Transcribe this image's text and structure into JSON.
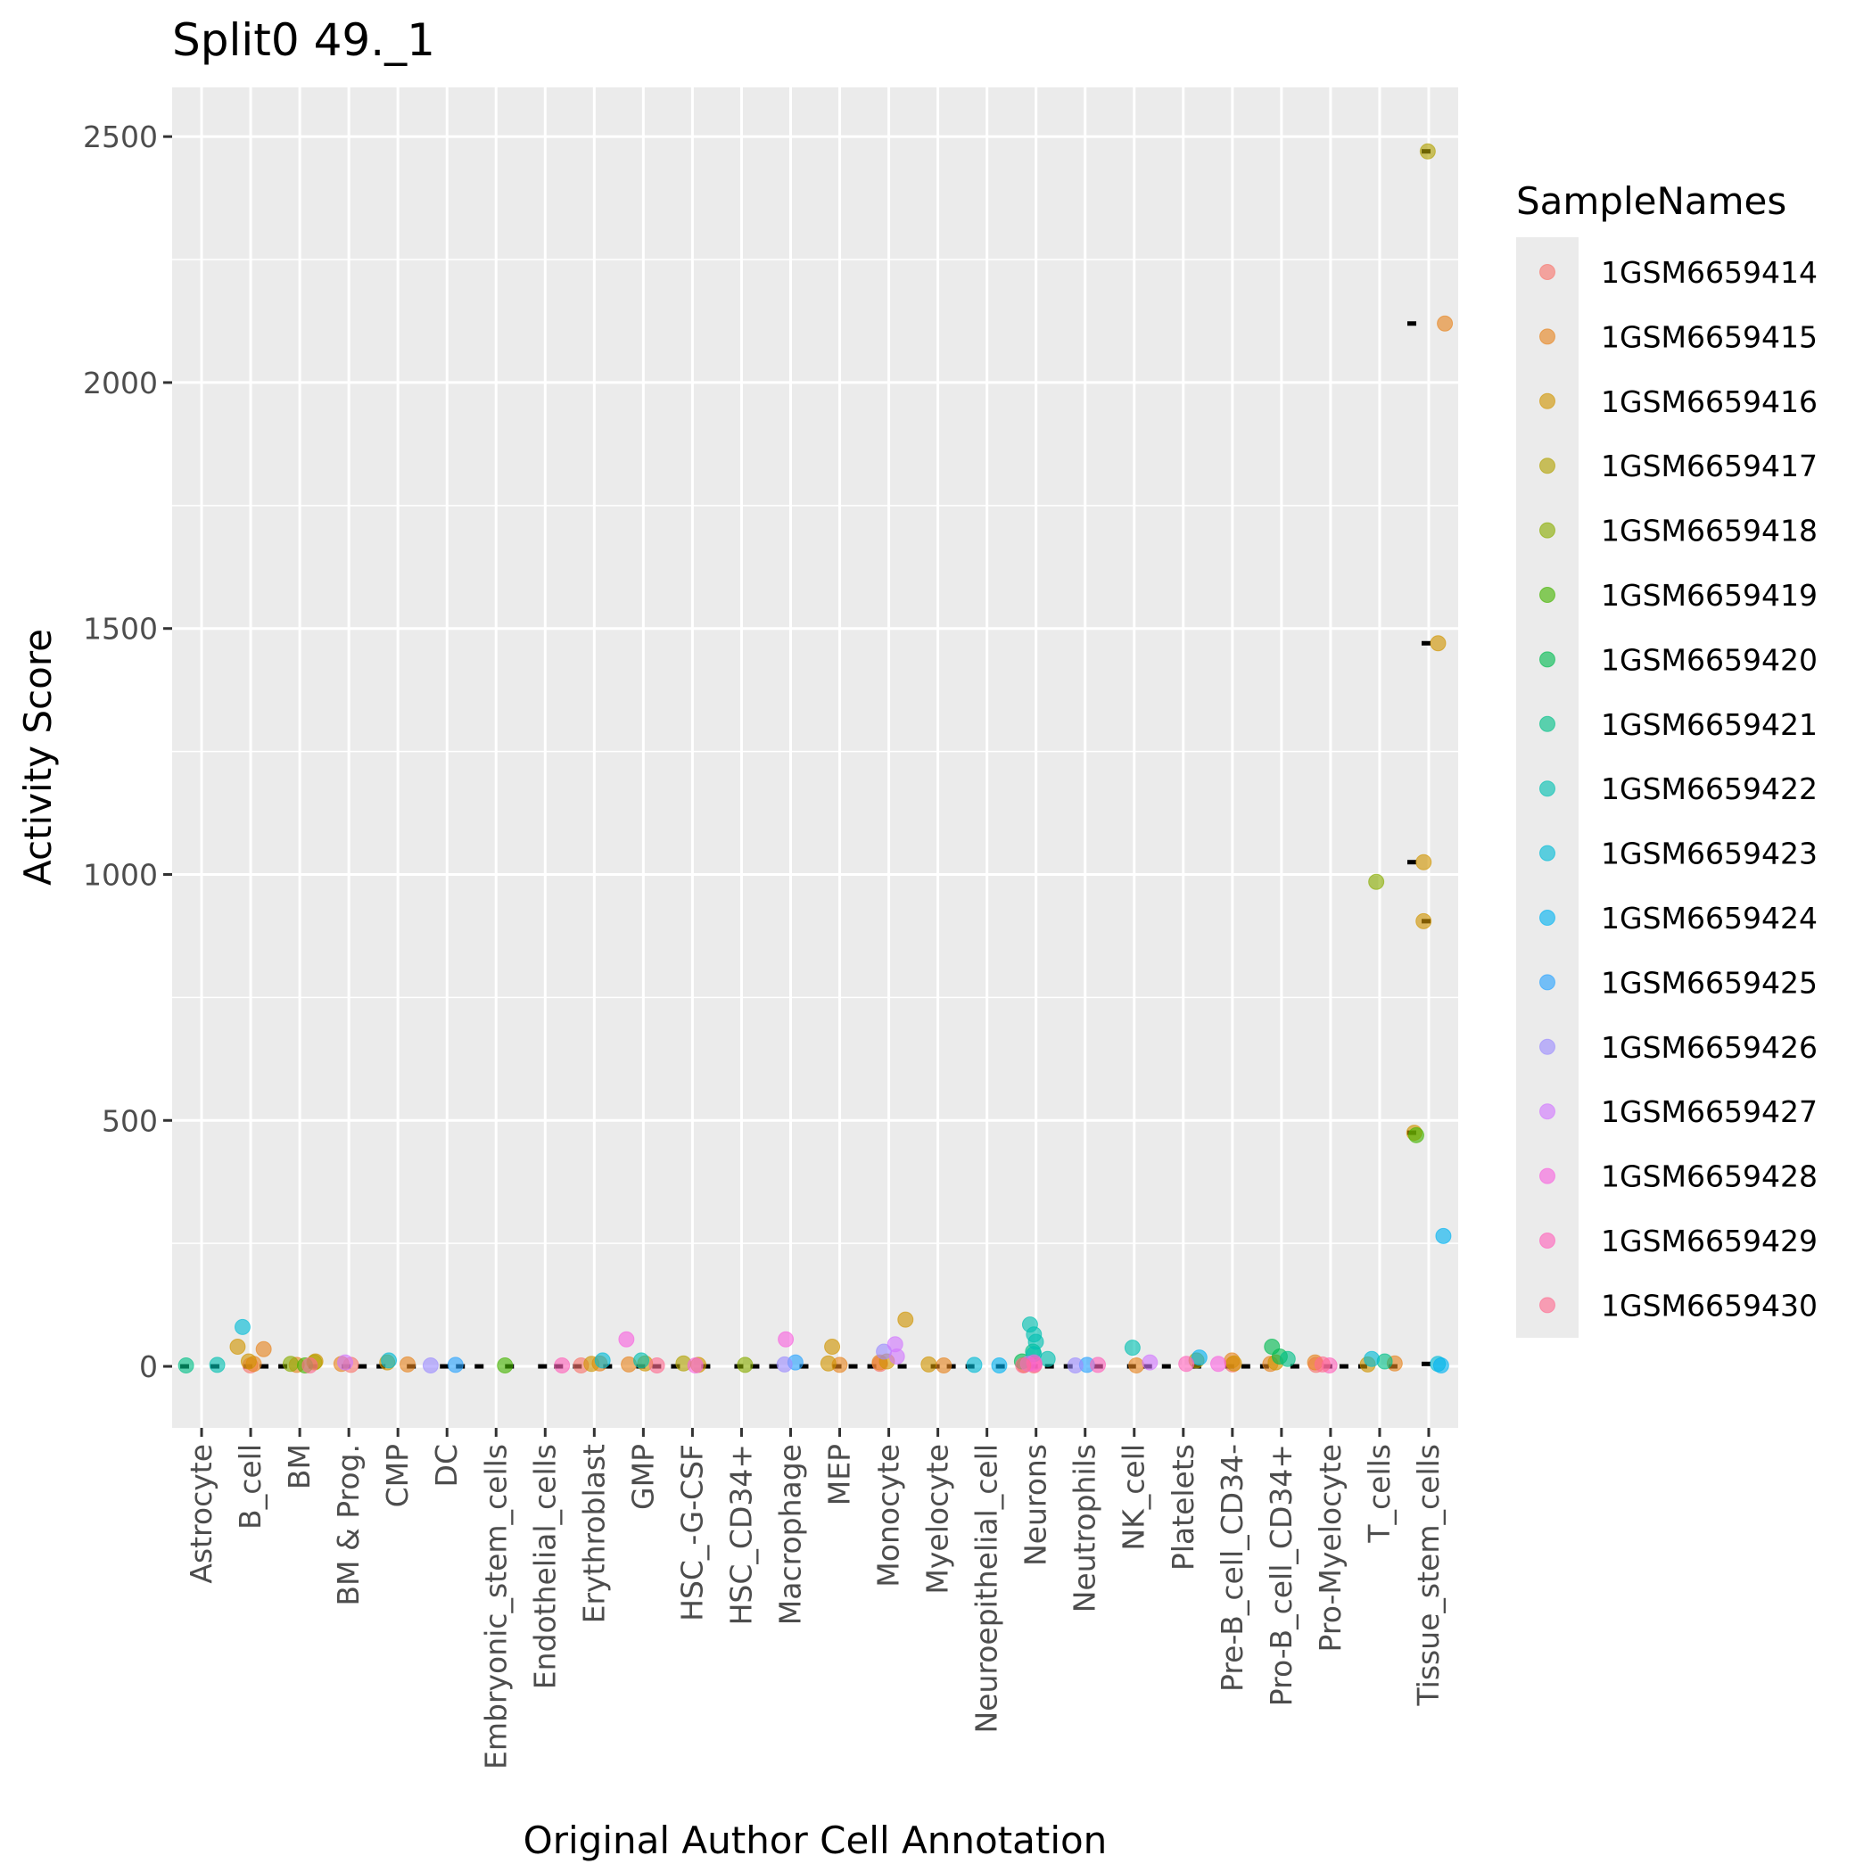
{
  "chart_data": {
    "type": "scatter",
    "title": "Split0 49._1",
    "xlabel": "Original Author Cell Annotation",
    "ylabel": "Activity Score",
    "ylim": [
      -125,
      2600
    ],
    "yticks": [
      0,
      500,
      1000,
      1500,
      2000,
      2500
    ],
    "grid": true,
    "legend": {
      "title": "SampleNames",
      "position": "right"
    },
    "categories": [
      "Astrocyte",
      "B_cell",
      "BM",
      "BM & Prog.",
      "CMP",
      "DC",
      "Embryonic_stem_cells",
      "Endothelial_cells",
      "Erythroblast",
      "GMP",
      "HSC_-G-CSF",
      "HSC_CD34+",
      "Macrophage",
      "MEP",
      "Monocyte",
      "Myelocyte",
      "Neuroepithelial_cell",
      "Neurons",
      "Neutrophils",
      "NK_cell",
      "Platelets",
      "Pre-B_cell_CD34-",
      "Pro-B_cell_CD34+",
      "Pro-Myelocyte",
      "T_cells",
      "Tissue_stem_cells"
    ],
    "series": [
      {
        "name": "1GSM6659414",
        "color": "#F8766D",
        "points": [
          [
            "B_cell",
            2
          ],
          [
            "BM & Prog.",
            3
          ],
          [
            "Erythroblast",
            2
          ],
          [
            "Monocyte",
            5
          ],
          [
            "Neurons",
            2
          ],
          [
            "Pre-B_cell_CD34-",
            4
          ],
          [
            "Pro-Myelocyte",
            3
          ]
        ]
      },
      {
        "name": "1GSM6659415",
        "color": "#E7851E",
        "points": [
          [
            "B_cell",
            35
          ],
          [
            "B_cell",
            5
          ],
          [
            "BM",
            3
          ],
          [
            "BM & Prog.",
            5
          ],
          [
            "CMP",
            4
          ],
          [
            "Erythroblast",
            6
          ],
          [
            "GMP",
            4
          ],
          [
            "MEP",
            3
          ],
          [
            "Monocyte",
            8
          ],
          [
            "Myelocyte",
            2
          ],
          [
            "Neurons",
            3
          ],
          [
            "NK_cell",
            2
          ],
          [
            "Pre-B_cell_CD34-",
            12
          ],
          [
            "Pro-B_cell_CD34+",
            5
          ],
          [
            "Pro-Myelocyte",
            8
          ],
          [
            "T_cells",
            6
          ],
          [
            "Tissue_stem_cells",
            2120
          ]
        ]
      },
      {
        "name": "1GSM6659416",
        "color": "#D09400",
        "points": [
          [
            "B_cell",
            40
          ],
          [
            "B_cell",
            10
          ],
          [
            "BM",
            10
          ],
          [
            "CMP",
            8
          ],
          [
            "Erythroblast",
            5
          ],
          [
            "GMP",
            6
          ],
          [
            "HSC_-G-CSF",
            3
          ],
          [
            "MEP",
            40
          ],
          [
            "MEP",
            6
          ],
          [
            "Monocyte",
            95
          ],
          [
            "Monocyte",
            10
          ],
          [
            "Myelocyte",
            4
          ],
          [
            "Pre-B_cell_CD34-",
            6
          ],
          [
            "Pro-B_cell_CD34+",
            8
          ],
          [
            "T_cells",
            4
          ],
          [
            "Tissue_stem_cells",
            1470
          ],
          [
            "Tissue_stem_cells",
            1025
          ],
          [
            "Tissue_stem_cells",
            905
          ],
          [
            "Tissue_stem_cells",
            475
          ]
        ]
      },
      {
        "name": "1GSM6659417",
        "color": "#B2A100",
        "points": [
          [
            "BM",
            8
          ],
          [
            "HSC_-G-CSF",
            6
          ],
          [
            "Platelets",
            12
          ],
          [
            "Tissue_stem_cells",
            2470
          ]
        ]
      },
      {
        "name": "1GSM6659418",
        "color": "#89AC00",
        "points": [
          [
            "BM",
            5
          ],
          [
            "HSC_CD34+",
            3
          ],
          [
            "T_cells",
            985
          ]
        ]
      },
      {
        "name": "1GSM6659419",
        "color": "#45B500",
        "points": [
          [
            "Embryonic_stem_cells",
            2
          ],
          [
            "BM",
            2
          ],
          [
            "Tissue_stem_cells",
            470
          ]
        ]
      },
      {
        "name": "1GSM6659420",
        "color": "#00BC51",
        "points": [
          [
            "Pro-B_cell_CD34+",
            40
          ],
          [
            "Pro-B_cell_CD34+",
            20
          ],
          [
            "Neurons",
            10
          ]
        ]
      },
      {
        "name": "1GSM6659421",
        "color": "#00C087",
        "points": [
          [
            "Astrocyte",
            2
          ],
          [
            "Neurons",
            30
          ],
          [
            "Pro-B_cell_CD34+",
            15
          ],
          [
            "T_cells",
            10
          ]
        ]
      },
      {
        "name": "1GSM6659422",
        "color": "#00C0B2",
        "points": [
          [
            "Astrocyte",
            3
          ],
          [
            "Neurons",
            85
          ],
          [
            "Neurons",
            65
          ],
          [
            "Neurons",
            50
          ],
          [
            "Neurons",
            25
          ],
          [
            "Neurons",
            15
          ],
          [
            "NK_cell",
            38
          ],
          [
            "GMP",
            12
          ]
        ]
      },
      {
        "name": "1GSM6659423",
        "color": "#00BCD6",
        "points": [
          [
            "B_cell",
            80
          ],
          [
            "CMP",
            12
          ],
          [
            "Erythroblast",
            12
          ],
          [
            "Neuroepithelial_cell",
            3
          ],
          [
            "T_cells",
            15
          ],
          [
            "Tissue_stem_cells",
            5
          ]
        ]
      },
      {
        "name": "1GSM6659424",
        "color": "#00B3F2",
        "points": [
          [
            "Neuroepithelial_cell",
            2
          ],
          [
            "Platelets",
            18
          ],
          [
            "Tissue_stem_cells",
            265
          ],
          [
            "Tissue_stem_cells",
            2
          ]
        ]
      },
      {
        "name": "1GSM6659425",
        "color": "#29A3FF",
        "points": [
          [
            "DC",
            3
          ],
          [
            "Macrophage",
            8
          ],
          [
            "Neutrophils",
            3
          ]
        ]
      },
      {
        "name": "1GSM6659426",
        "color": "#9C8DFF",
        "points": [
          [
            "DC",
            2
          ],
          [
            "Macrophage",
            4
          ],
          [
            "Monocyte",
            30
          ],
          [
            "Neutrophils",
            2
          ]
        ]
      },
      {
        "name": "1GSM6659427",
        "color": "#D277FF",
        "points": [
          [
            "BM & Prog.",
            8
          ],
          [
            "Monocyte",
            45
          ],
          [
            "Monocyte",
            20
          ],
          [
            "Neurons",
            5
          ],
          [
            "NK_cell",
            8
          ]
        ]
      },
      {
        "name": "1GSM6659428",
        "color": "#F863DF",
        "points": [
          [
            "GMP",
            55
          ],
          [
            "Macrophage",
            55
          ],
          [
            "HSC_-G-CSF",
            2
          ],
          [
            "Neurons",
            8
          ],
          [
            "Pre-B_cell_CD34-",
            5
          ]
        ]
      },
      {
        "name": "1GSM6659429",
        "color": "#FF62BC",
        "points": [
          [
            "Endothelial_cells",
            2
          ],
          [
            "Neurons",
            4
          ],
          [
            "Neutrophils",
            3
          ],
          [
            "Platelets",
            5
          ],
          [
            "Pro-Myelocyte",
            2
          ]
        ]
      },
      {
        "name": "1GSM6659430",
        "color": "#FF6C91",
        "points": [
          [
            "Neurons",
            2
          ],
          [
            "BM",
            2
          ],
          [
            "GMP",
            2
          ],
          [
            "Pro-Myelocyte",
            4
          ]
        ]
      }
    ],
    "medians": [
      [
        "Astrocyte",
        0
      ],
      [
        "B_cell",
        0
      ],
      [
        "BM",
        0
      ],
      [
        "BM & Prog.",
        0
      ],
      [
        "CMP",
        0
      ],
      [
        "DC",
        0
      ],
      [
        "Embryonic_stem_cells",
        0
      ],
      [
        "Endothelial_cells",
        0
      ],
      [
        "Erythroblast",
        0
      ],
      [
        "GMP",
        0
      ],
      [
        "HSC_-G-CSF",
        0
      ],
      [
        "HSC_CD34+",
        0
      ],
      [
        "Macrophage",
        0
      ],
      [
        "MEP",
        0
      ],
      [
        "Monocyte",
        0
      ],
      [
        "Myelocyte",
        0
      ],
      [
        "Neuroepithelial_cell",
        0
      ],
      [
        "Neurons",
        0
      ],
      [
        "Neutrophils",
        0
      ],
      [
        "NK_cell",
        0
      ],
      [
        "Platelets",
        0
      ],
      [
        "Pre-B_cell_CD34-",
        0
      ],
      [
        "Pro-B_cell_CD34+",
        0
      ],
      [
        "Pro-Myelocyte",
        0
      ],
      [
        "T_cells",
        0
      ],
      [
        "Tissue_stem_cells",
        2470
      ],
      [
        "Tissue_stem_cells",
        2120
      ],
      [
        "Tissue_stem_cells",
        1470
      ],
      [
        "Tissue_stem_cells",
        1025
      ],
      [
        "Tissue_stem_cells",
        905
      ],
      [
        "Tissue_stem_cells",
        475
      ],
      [
        "Tissue_stem_cells",
        5
      ]
    ]
  }
}
